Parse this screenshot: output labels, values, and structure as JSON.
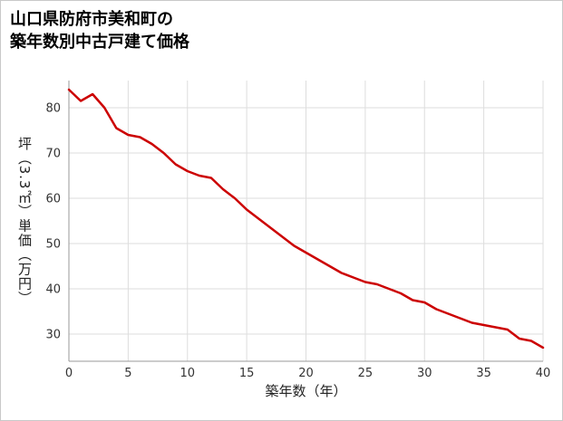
{
  "page": {
    "title_line1": "山口県防府市美和町の",
    "title_line2": "築年数別中古戸建て価格"
  },
  "chart_data": {
    "type": "line",
    "title": "山口県防府市美和町の築年数別中古戸建て価格",
    "xlabel": "築年数（年）",
    "ylabel": "坪（3.3㎡）単価（万円）",
    "x": [
      0,
      1,
      2,
      3,
      4,
      5,
      6,
      7,
      8,
      9,
      10,
      11,
      12,
      13,
      14,
      15,
      16,
      17,
      18,
      19,
      20,
      21,
      22,
      23,
      24,
      25,
      26,
      27,
      28,
      29,
      30,
      31,
      32,
      33,
      34,
      35,
      36,
      37,
      38,
      39,
      40
    ],
    "values": [
      84,
      81.5,
      83,
      80,
      75.5,
      74,
      73.5,
      72,
      70,
      67.5,
      66,
      65,
      64.5,
      62,
      60,
      57.5,
      55.5,
      53.5,
      51.5,
      49.5,
      48,
      46.5,
      45,
      43.5,
      42.5,
      41.5,
      41,
      40,
      39,
      37.5,
      37,
      35.5,
      34.5,
      33.5,
      32.5,
      32,
      31.5,
      31,
      29,
      28.5,
      27
    ],
    "xlim": [
      0,
      40
    ],
    "ylim": [
      24,
      86
    ],
    "x_ticks": [
      0,
      5,
      10,
      15,
      20,
      25,
      30,
      35,
      40
    ],
    "y_ticks": [
      30,
      40,
      50,
      60,
      70,
      80
    ],
    "grid": true,
    "legend_position": "none",
    "line_color": "#cc0000",
    "grid_color": "#dddddd",
    "axis_color": "#999999",
    "tick_label_color": "#333333"
  }
}
